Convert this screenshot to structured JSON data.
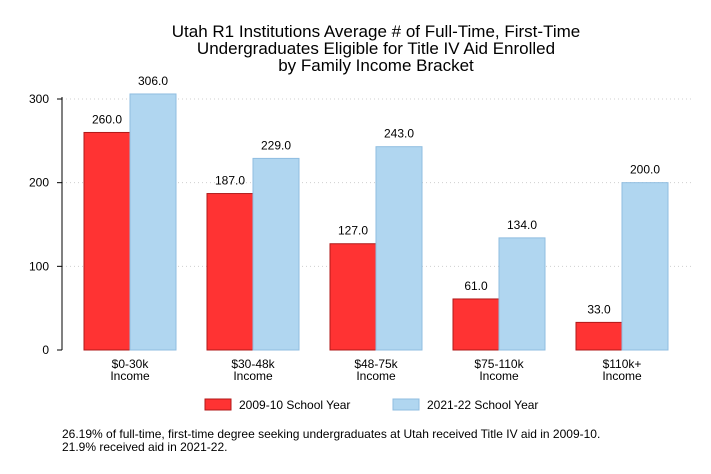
{
  "chart_data": {
    "type": "bar",
    "title_lines": [
      "Utah R1 Institutions Average # of Full-Time, First-Time",
      "Undergraduates Eligible for Title IV Aid Enrolled",
      "by Family Income Bracket"
    ],
    "categories": [
      [
        "$0-30k",
        "Income"
      ],
      [
        "$30-48k",
        "Income"
      ],
      [
        "$48-75k",
        "Income"
      ],
      [
        "$75-110k",
        "Income"
      ],
      [
        "$110k+",
        "Income"
      ]
    ],
    "series": [
      {
        "name": "2009-10 School Year",
        "color": "#ff3333",
        "stroke": "#b01a1a",
        "values": [
          260.0,
          187.0,
          127.0,
          61.0,
          33.0
        ],
        "labels": [
          "260.0",
          "187.0",
          "127.0",
          "61.0",
          "33.0"
        ]
      },
      {
        "name": "2021-22 School Year",
        "color": "#b0d6f0",
        "stroke": "#8fbde0",
        "values": [
          306.0,
          229.0,
          243.0,
          134.0,
          200.0
        ],
        "labels": [
          "306.0",
          "229.0",
          "243.0",
          "134.0",
          "200.0"
        ]
      }
    ],
    "yticks": [
      0,
      100,
      200,
      300
    ],
    "ylim": [
      0,
      300
    ],
    "grid": true,
    "legend_position": "bottom"
  },
  "footnote": "26.19% of full-time, first-time degree seeking undergraduates at Utah received Title IV aid in 2009-10. 21.9% received aid in 2021-22."
}
